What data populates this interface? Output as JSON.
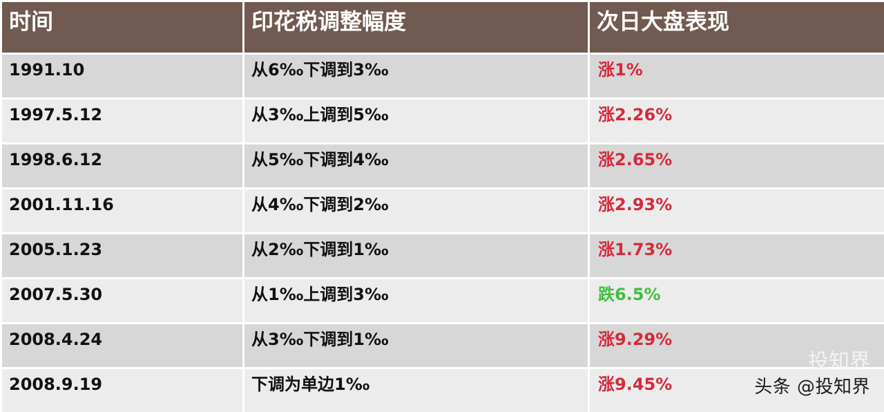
{
  "header": {
    "col_time": "时间",
    "col_adjustment": "印花税调整幅度",
    "col_next_day": "次日大盘表现"
  },
  "colors": {
    "header_bg": "#715a51",
    "header_text": "#ffffff",
    "row_odd_bg": "#d7d7d7",
    "row_even_bg": "#ececec",
    "rise": "#d42a3c",
    "fall": "#3fbf3f"
  },
  "rows": [
    {
      "date": "1991.10",
      "adjustment": "从6‰下调到3‰",
      "next_day": "涨1%",
      "direction": "rise"
    },
    {
      "date": "1997.5.12",
      "adjustment": "从3‰上调到5‰",
      "next_day": "涨2.26%",
      "direction": "rise"
    },
    {
      "date": "1998.6.12",
      "adjustment": "从5‰下调到4‰",
      "next_day": "涨2.65%",
      "direction": "rise"
    },
    {
      "date": "2001.11.16",
      "adjustment": "从4‰下调到2‰",
      "next_day": "涨2.93%",
      "direction": "rise"
    },
    {
      "date": "2005.1.23",
      "adjustment": "从2‰下调到1‰",
      "next_day": "涨1.73%",
      "direction": "rise"
    },
    {
      "date": "2007.5.30",
      "adjustment": "从1‰上调到3‰",
      "next_day": "跌6.5%",
      "direction": "fall"
    },
    {
      "date": "2008.4.24",
      "adjustment": "从3‰下调到1‰",
      "next_day": "涨9.29%",
      "direction": "rise"
    },
    {
      "date": "2008.9.19",
      "adjustment": "下调为单边1‰",
      "next_day": "涨9.45%",
      "direction": "rise"
    }
  ],
  "watermark": {
    "text": "头条 @投知界",
    "ghost_text": "投知界"
  }
}
